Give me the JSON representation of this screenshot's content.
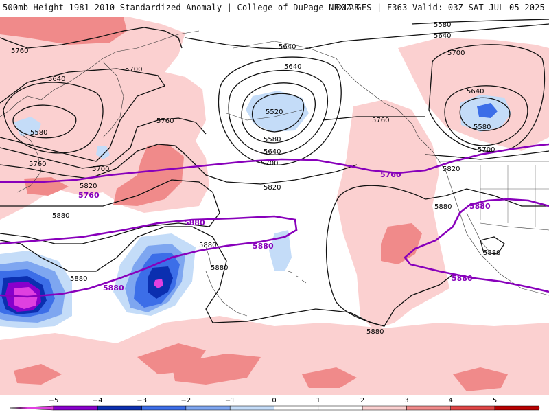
{
  "header": {
    "title_left": "500mb Height 1981-2010 Standardized Anomaly | College of DuPage NEXLAB",
    "title_right": "00Z GFS | F363 Valid: 03Z SAT JUL 05 2025"
  },
  "colors": {
    "m5": "#e040e0",
    "m4": "#8800cc",
    "m3": "#0b2fb0",
    "m2": "#3c6ee8",
    "m1_5": "#7ea6f0",
    "m1": "#c4dcf8",
    "p1": "#fbd0d0",
    "p2": "#f08a8a",
    "p3": "#e04545",
    "p4": "#b80000",
    "p5": "#f7a800",
    "highlight_contour": "#8800bb"
  },
  "colorbar": {
    "ticks": [
      "−5",
      "−4",
      "−3",
      "−2",
      "−1",
      "0",
      "1",
      "2",
      "3",
      "4",
      "5"
    ]
  },
  "contour_labels": {
    "l5760_nw": "5760",
    "l5700_1": "5700",
    "l5640_1": "5640",
    "l5580_1": "5580",
    "l5760_2": "5760",
    "l5760_3": "5760",
    "l5700_2": "5700",
    "l5820_1": "5820",
    "l5880_1": "5880",
    "l5640_2": "5640",
    "l5640_3": "5640",
    "l5520": "5520",
    "l5580_2": "5580",
    "l5640_4": "5640",
    "l5700_3": "5700",
    "l5820_2": "5820",
    "l5760_4": "5760",
    "l5580_3": "5580",
    "l5640_5": "5640",
    "l5700_4": "5700",
    "l5640_6": "5640",
    "l5700_5": "5700",
    "l5580_4": "5580",
    "l5820_3": "5820",
    "l5880_2": "5880",
    "l5880_3": "5880",
    "l5880_4": "5880",
    "l5880_5": "5880",
    "l5880_6": "5880",
    "l5880_7": "5880"
  },
  "highlight_labels": {
    "h5760_a": "5760",
    "h5880_a": "5880",
    "h5880_b": "5880",
    "h5880_c": "5880",
    "h5760_b": "5760",
    "h5880_d": "5880",
    "h5880_e": "5880"
  }
}
